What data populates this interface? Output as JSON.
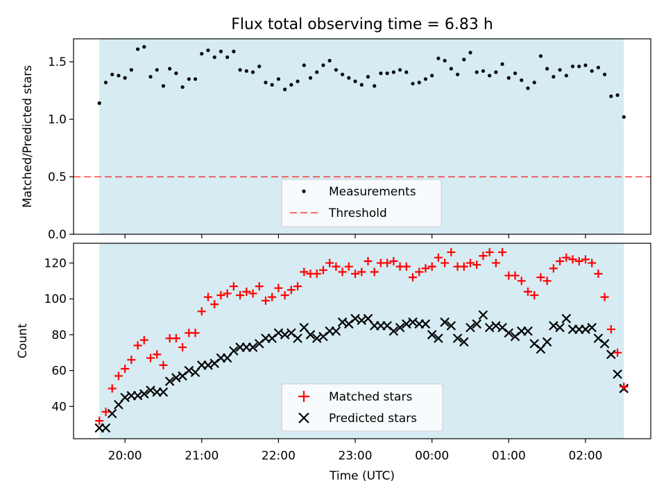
{
  "title": "Flux total observing time = 6.83 h",
  "colors": {
    "shade": "#add8e6",
    "threshold": "#ff0000",
    "matched": "#ff0000",
    "predicted": "#000000",
    "measure": "#000000"
  },
  "chart_data": [
    {
      "type": "scatter",
      "ylabel": "Matched/Predicted stars",
      "xlim": [
        19.33,
        2.85
      ],
      "ylim": [
        0,
        1.7
      ],
      "yticks": [
        "0.0",
        "0.5",
        "1.0",
        "1.5"
      ],
      "shaded_span": [
        "19:40",
        "02:30"
      ],
      "threshold": 0.5,
      "legend_position": "lower center",
      "series": [
        {
          "name": "Measurements",
          "x": [
            "19:40",
            "19:45",
            "19:50",
            "19:55",
            "20:00",
            "20:05",
            "20:10",
            "20:15",
            "20:20",
            "20:25",
            "20:30",
            "20:35",
            "20:40",
            "20:45",
            "20:50",
            "20:55",
            "21:00",
            "21:05",
            "21:10",
            "21:15",
            "21:20",
            "21:25",
            "21:30",
            "21:35",
            "21:40",
            "21:45",
            "21:50",
            "21:55",
            "22:00",
            "22:05",
            "22:10",
            "22:15",
            "22:20",
            "22:25",
            "22:30",
            "22:35",
            "22:40",
            "22:45",
            "22:50",
            "22:55",
            "23:00",
            "23:05",
            "23:10",
            "23:15",
            "23:20",
            "23:25",
            "23:30",
            "23:35",
            "23:40",
            "23:45",
            "23:50",
            "23:55",
            "00:00",
            "00:05",
            "00:10",
            "00:15",
            "00:20",
            "00:25",
            "00:30",
            "00:35",
            "00:40",
            "00:45",
            "00:50",
            "00:55",
            "01:00",
            "01:05",
            "01:10",
            "01:15",
            "01:20",
            "01:25",
            "01:30",
            "01:35",
            "01:40",
            "01:45",
            "01:50",
            "01:55",
            "02:00",
            "02:05",
            "02:10",
            "02:15",
            "02:20",
            "02:25",
            "02:30"
          ],
          "y": [
            1.14,
            1.32,
            1.39,
            1.38,
            1.36,
            1.43,
            1.61,
            1.63,
            1.37,
            1.43,
            1.29,
            1.44,
            1.4,
            1.28,
            1.35,
            1.35,
            1.57,
            1.6,
            1.54,
            1.59,
            1.54,
            1.59,
            1.43,
            1.42,
            1.41,
            1.46,
            1.32,
            1.3,
            1.35,
            1.26,
            1.3,
            1.33,
            1.47,
            1.36,
            1.41,
            1.47,
            1.51,
            1.43,
            1.39,
            1.36,
            1.33,
            1.3,
            1.37,
            1.29,
            1.4,
            1.4,
            1.41,
            1.43,
            1.41,
            1.31,
            1.32,
            1.35,
            1.38,
            1.53,
            1.51,
            1.44,
            1.39,
            1.52,
            1.58,
            1.41,
            1.42,
            1.38,
            1.41,
            1.48,
            1.36,
            1.4,
            1.34,
            1.27,
            1.32,
            1.55,
            1.44,
            1.37,
            1.43,
            1.38,
            1.46,
            1.46,
            1.47,
            1.42,
            1.45,
            1.39,
            1.2,
            1.21,
            1.02
          ]
        },
        {
          "name": "Threshold",
          "y": 0.5
        }
      ]
    },
    {
      "type": "scatter",
      "xlabel": "Time (UTC)",
      "ylabel": "Count",
      "xlim": [
        19.33,
        2.85
      ],
      "ylim": [
        22,
        131
      ],
      "yticks": [
        "40",
        "60",
        "80",
        "100",
        "120"
      ],
      "xticks": [
        "20:00",
        "21:00",
        "22:00",
        "23:00",
        "00:00",
        "01:00",
        "02:00"
      ],
      "shaded_span": [
        "19:40",
        "02:30"
      ],
      "legend_position": "lower center",
      "series": [
        {
          "name": "Matched stars",
          "x": [
            "19:40",
            "19:45",
            "19:50",
            "19:55",
            "20:00",
            "20:05",
            "20:10",
            "20:15",
            "20:20",
            "20:25",
            "20:30",
            "20:35",
            "20:40",
            "20:45",
            "20:50",
            "20:55",
            "21:00",
            "21:05",
            "21:10",
            "21:15",
            "21:20",
            "21:25",
            "21:30",
            "21:35",
            "21:40",
            "21:45",
            "21:50",
            "21:55",
            "22:00",
            "22:05",
            "22:10",
            "22:15",
            "22:20",
            "22:25",
            "22:30",
            "22:35",
            "22:40",
            "22:45",
            "22:50",
            "22:55",
            "23:00",
            "23:05",
            "23:10",
            "23:15",
            "23:20",
            "23:25",
            "23:30",
            "23:35",
            "23:40",
            "23:45",
            "23:50",
            "23:55",
            "00:00",
            "00:05",
            "00:10",
            "00:15",
            "00:20",
            "00:25",
            "00:30",
            "00:35",
            "00:40",
            "00:45",
            "00:50",
            "00:55",
            "01:00",
            "01:05",
            "01:10",
            "01:15",
            "01:20",
            "01:25",
            "01:30",
            "01:35",
            "01:40",
            "01:45",
            "01:50",
            "01:55",
            "02:00",
            "02:05",
            "02:10",
            "02:15",
            "02:20",
            "02:25",
            "02:30"
          ],
          "y": [
            32,
            37,
            50,
            57,
            61,
            66,
            74,
            77,
            67,
            69,
            63,
            78,
            78,
            73,
            81,
            81,
            93,
            101,
            97,
            102,
            103,
            107,
            102,
            104,
            103,
            107,
            99,
            101,
            106,
            102,
            105,
            107,
            115,
            114,
            114,
            116,
            120,
            118,
            115,
            118,
            114,
            115,
            121,
            115,
            120,
            120,
            121,
            118,
            118,
            112,
            115,
            117,
            118,
            123,
            120,
            126,
            118,
            118,
            120,
            119,
            124,
            126,
            120,
            126,
            113,
            113,
            110,
            104,
            102,
            112,
            110,
            117,
            121,
            123,
            122,
            121,
            122,
            120,
            114,
            101,
            83,
            70,
            51
          ]
        },
        {
          "name": "Predicted stars",
          "x": [
            "19:40",
            "19:45",
            "19:50",
            "19:55",
            "20:00",
            "20:05",
            "20:10",
            "20:15",
            "20:20",
            "20:25",
            "20:30",
            "20:35",
            "20:40",
            "20:45",
            "20:50",
            "20:55",
            "21:00",
            "21:05",
            "21:10",
            "21:15",
            "21:20",
            "21:25",
            "21:30",
            "21:35",
            "21:40",
            "21:45",
            "21:50",
            "21:55",
            "22:00",
            "22:05",
            "22:10",
            "22:15",
            "22:20",
            "22:25",
            "22:30",
            "22:35",
            "22:40",
            "22:45",
            "22:50",
            "22:55",
            "23:00",
            "23:05",
            "23:10",
            "23:15",
            "23:20",
            "23:25",
            "23:30",
            "23:35",
            "23:40",
            "23:45",
            "23:50",
            "23:55",
            "00:00",
            "00:05",
            "00:10",
            "00:15",
            "00:20",
            "00:25",
            "00:30",
            "00:35",
            "00:40",
            "00:45",
            "00:50",
            "00:55",
            "01:00",
            "01:05",
            "01:10",
            "01:15",
            "01:20",
            "01:25",
            "01:30",
            "01:35",
            "01:40",
            "01:45",
            "01:50",
            "01:55",
            "02:00",
            "02:05",
            "02:10",
            "02:15",
            "02:20",
            "02:25",
            "02:30"
          ],
          "y": [
            28,
            28,
            36,
            41,
            45,
            46,
            46,
            47,
            49,
            48,
            48,
            54,
            56,
            57,
            60,
            59,
            63,
            63,
            64,
            67,
            67,
            71,
            73,
            73,
            73,
            75,
            78,
            78,
            81,
            80,
            81,
            78,
            84,
            80,
            78,
            79,
            82,
            82,
            87,
            86,
            89,
            88,
            89,
            85,
            85,
            85,
            82,
            84,
            86,
            87,
            86,
            86,
            80,
            78,
            87,
            85,
            78,
            76,
            84,
            86,
            91,
            84,
            85,
            84,
            81,
            79,
            82,
            82,
            75,
            72,
            76,
            85,
            84,
            89,
            83,
            83,
            83,
            84,
            78,
            75,
            69,
            58,
            50
          ]
        }
      ]
    }
  ]
}
